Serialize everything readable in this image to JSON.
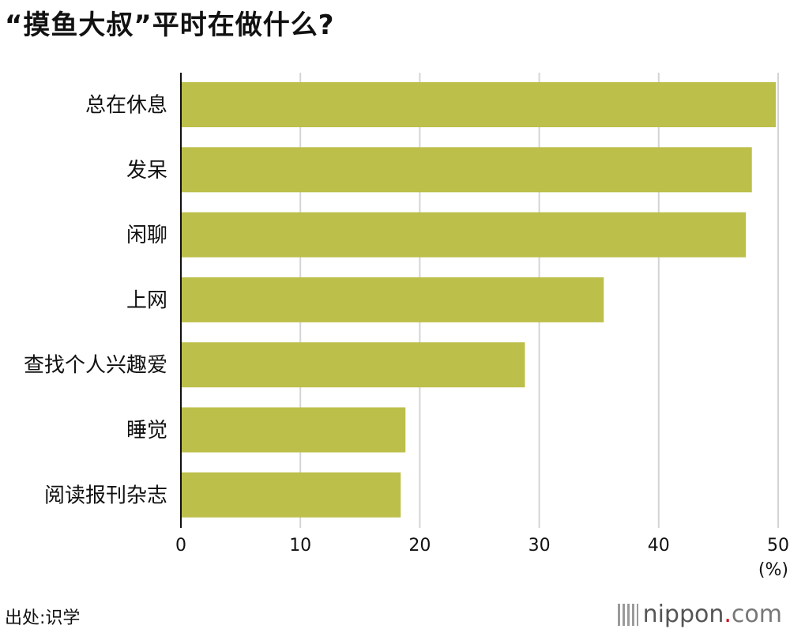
{
  "header": {
    "title": "“摸鱼大叔”平时在做什么?"
  },
  "chart_data": {
    "type": "bar",
    "orientation": "horizontal",
    "categories": [
      "总在休息",
      "发呆",
      "闲聊",
      "上网",
      "查找个人兴趣爱",
      "睡觉",
      "阅读报刊杂志"
    ],
    "values": [
      49.8,
      47.8,
      47.3,
      35.4,
      28.8,
      18.8,
      18.4
    ],
    "xlim": [
      0,
      50
    ],
    "xticks": [
      0,
      10,
      20,
      30,
      40,
      50
    ],
    "xunit": "(%)",
    "grid": true,
    "bar_color": "#bcbf4a"
  },
  "footer": {
    "source": "出处:识学",
    "logo": {
      "main": "nippon",
      "dot": ".",
      "tld": "com"
    }
  }
}
